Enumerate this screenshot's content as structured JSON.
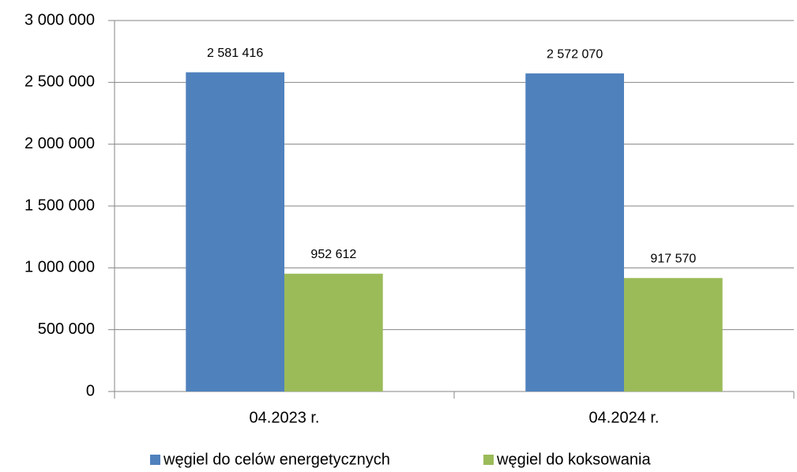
{
  "chart_data": {
    "type": "bar",
    "categories": [
      "04.2023 r.",
      "04.2024 r."
    ],
    "series": [
      {
        "name": "węgiel do celów energetycznych",
        "color": "#4f81bd",
        "values": [
          2581416,
          2572070
        ],
        "value_labels": [
          "2 581 416",
          "2 572 070"
        ]
      },
      {
        "name": "węgiel do koksowania",
        "color": "#9bbb59",
        "values": [
          952612,
          917570
        ],
        "value_labels": [
          "952 612",
          "917 570"
        ]
      }
    ],
    "ylim": [
      0,
      3000000
    ],
    "yticks": [
      0,
      {
        "value": 500000,
        "label": "500 000"
      },
      {
        "value": 1000000,
        "label": "1 000 000"
      },
      {
        "value": 1500000,
        "label": "1 500 000"
      },
      {
        "value": 2000000,
        "label": "2 000 000"
      },
      {
        "value": 2500000,
        "label": "2 500 000"
      },
      {
        "value": 3000000,
        "label": "3 000 000"
      }
    ],
    "grid": true,
    "legend": "bottom"
  }
}
